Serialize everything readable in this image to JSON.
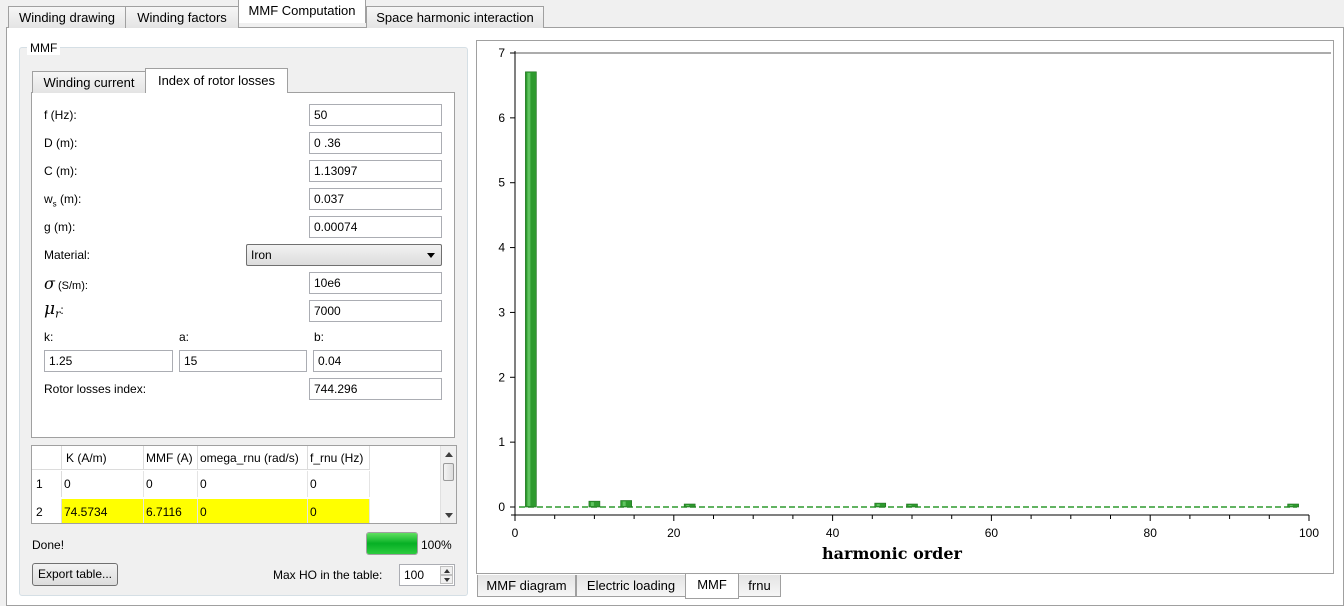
{
  "top_tabs": [
    "Winding drawing",
    "Winding factors",
    "MMF Computation",
    "Space harmonic interaction"
  ],
  "top_tab_active": 2,
  "group_title": "MMF",
  "inner_tabs": [
    "Winding current",
    "Index of rotor losses"
  ],
  "inner_tab_active": 1,
  "fields": {
    "f_label": "f (Hz):",
    "f_value": "50",
    "D_label": "D (m):",
    "D_value": "0 .36",
    "C_label": "C (m):",
    "C_value": "1.13097",
    "ws_label_main": "w",
    "ws_label_sub": "s",
    "ws_label_rest": " (m):",
    "ws_value": "0.037",
    "g_label": "g (m):",
    "g_value": "0.00074",
    "material_label": "Material:",
    "material_value": "Iron",
    "sigma_symbol": "σ",
    "sigma_label": " (S/m):",
    "sigma_value": "10e6",
    "mu_symbol": "μ",
    "mu_sub": "r",
    "mu_label": ":",
    "mu_value": "7000",
    "k_label": "k:",
    "k_value": "1.25",
    "a_label": "a:",
    "a_value": "15",
    "b_label": "b:",
    "b_value": "0.04",
    "rotor_label": "Rotor losses index:",
    "rotor_value": "744.296"
  },
  "table": {
    "headers": [
      "K (A/m)",
      "MMF (A)",
      "omega_rnu (rad/s)",
      "f_rnu (Hz)"
    ],
    "rows": [
      {
        "index": "1",
        "cells": [
          "0",
          "0",
          "0",
          "0"
        ],
        "highlight": false
      },
      {
        "index": "2",
        "cells": [
          "74.5734",
          "6.7116",
          "0",
          "0"
        ],
        "highlight": true
      }
    ]
  },
  "status": {
    "text": "Done!",
    "progress_percent": 100,
    "progress_label": "100%"
  },
  "export_button": "Export table...",
  "max_ho": {
    "label": "Max HO in the table:",
    "value": "100"
  },
  "bottom_tabs": [
    "MMF diagram",
    "Electric loading",
    "MMF",
    "frnu"
  ],
  "bottom_tab_active": 2,
  "colors": {
    "bar": "#2e9a2e",
    "bar_light": "#5fc35f",
    "highlight": "#ffff00"
  },
  "chart_data": {
    "type": "bar",
    "xlabel": "harmonic order",
    "ylabel": "",
    "xlim": [
      0,
      100
    ],
    "ylim": [
      0,
      7
    ],
    "xticks": [
      0,
      20,
      40,
      60,
      80,
      100
    ],
    "yticks": [
      0,
      1,
      2,
      3,
      4,
      5,
      6,
      7
    ],
    "x": [
      2,
      10,
      14,
      22,
      46,
      50,
      98
    ],
    "values": [
      6.71,
      0.09,
      0.1,
      0.02,
      0.06,
      0.04,
      0.02
    ]
  }
}
